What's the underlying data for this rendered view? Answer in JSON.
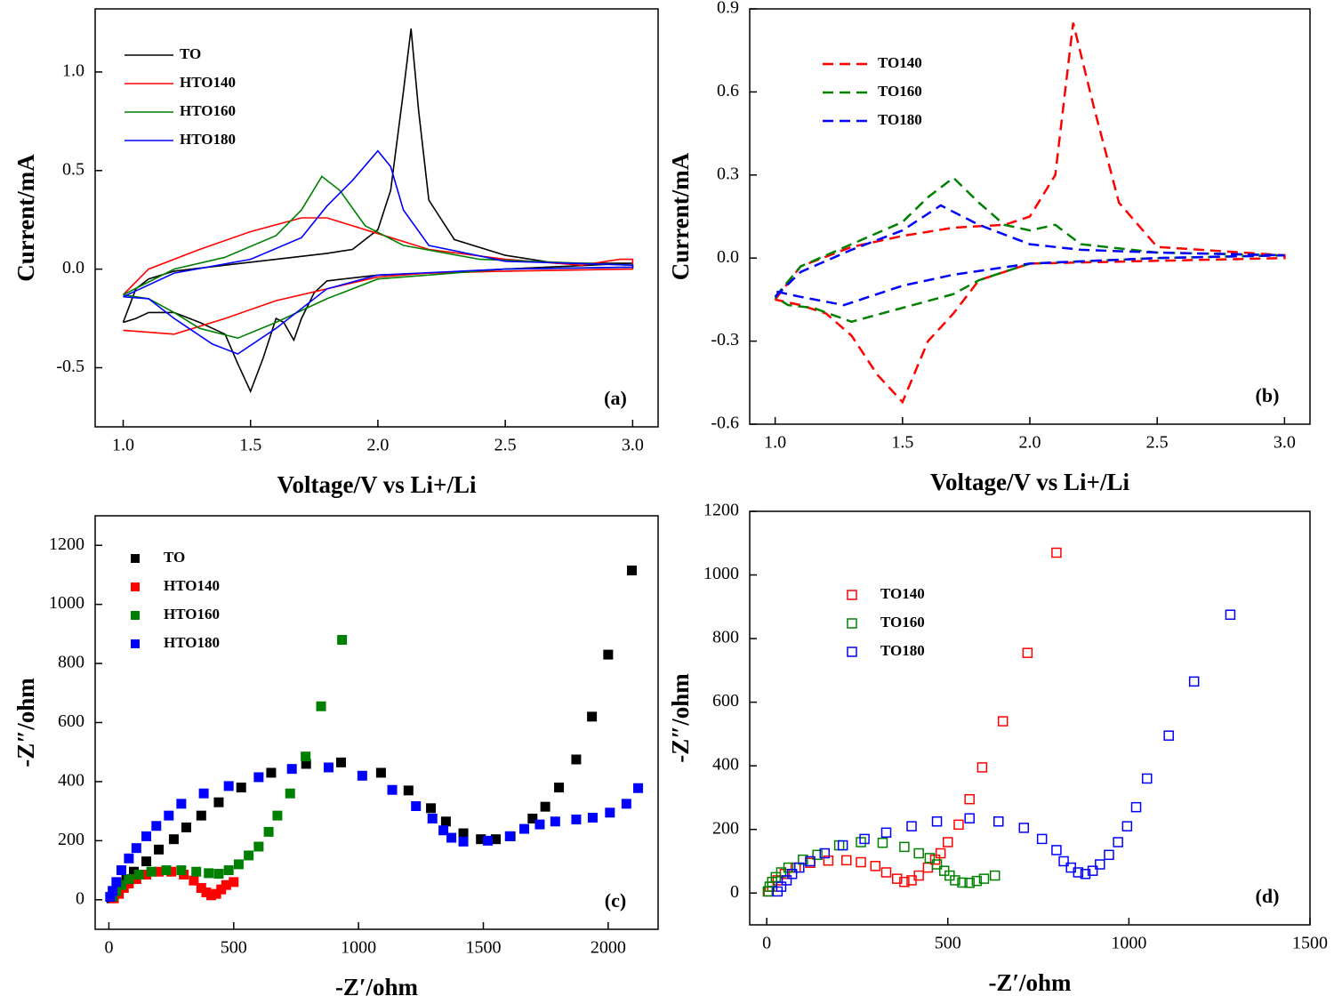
{
  "chart_data": [
    {
      "type": "line",
      "x_label": "Voltage/V vs Li+/Li",
      "y_label": "Current/mA",
      "annotation": "(a)",
      "legend": "upper left",
      "dashed": false,
      "xlim": [
        0.89,
        3.1
      ],
      "ylim": [
        -0.8,
        1.32
      ],
      "xticks": [
        {
          "value": 1,
          "label": "1.0"
        },
        1.5,
        {
          "value": 2,
          "label": "2.0"
        },
        2.5,
        {
          "value": 3,
          "label": "3.0"
        }
      ],
      "yticks": [
        -0.5,
        {
          "value": 0,
          "label": "0.0"
        },
        0.5,
        {
          "value": 1,
          "label": "1.0"
        }
      ],
      "series": [
        {
          "name": "TO",
          "color": "#000000",
          "x": [
            1.0,
            1.05,
            1.1,
            1.2,
            1.4,
            1.6,
            1.8,
            1.9,
            2.0,
            2.05,
            2.1,
            2.13,
            2.16,
            2.2,
            2.3,
            2.5,
            2.7,
            3.0,
            3.0,
            2.5,
            2.2,
            2.0,
            1.8,
            1.75,
            1.7,
            1.67,
            1.63,
            1.6,
            1.55,
            1.5,
            1.45,
            1.4,
            1.3,
            1.2,
            1.1,
            1.05,
            1.0
          ],
          "values": [
            -0.27,
            -0.1,
            -0.05,
            -0.01,
            0.02,
            0.05,
            0.08,
            0.1,
            0.2,
            0.4,
            0.9,
            1.22,
            0.8,
            0.35,
            0.15,
            0.07,
            0.03,
            0.03,
            0.03,
            0.0,
            -0.02,
            -0.03,
            -0.06,
            -0.12,
            -0.25,
            -0.36,
            -0.27,
            -0.25,
            -0.45,
            -0.62,
            -0.48,
            -0.33,
            -0.27,
            -0.22,
            -0.22,
            -0.25,
            -0.27
          ]
        },
        {
          "name": "HTO140",
          "color": "#ff0000",
          "x": [
            1.0,
            1.1,
            1.3,
            1.5,
            1.7,
            1.8,
            2.0,
            2.2,
            2.5,
            2.8,
            2.95,
            3.0,
            3.0,
            2.5,
            2.2,
            2.0,
            1.8,
            1.6,
            1.4,
            1.2,
            1.1,
            1.0
          ],
          "values": [
            -0.13,
            0.0,
            0.1,
            0.19,
            0.26,
            0.26,
            0.18,
            0.1,
            0.05,
            0.02,
            0.05,
            0.05,
            0.0,
            -0.01,
            -0.02,
            -0.04,
            -0.1,
            -0.16,
            -0.25,
            -0.33,
            -0.32,
            -0.31
          ]
        },
        {
          "name": "HTO160",
          "color": "#008000",
          "x": [
            1.0,
            1.2,
            1.4,
            1.6,
            1.7,
            1.78,
            1.85,
            1.95,
            2.1,
            2.4,
            3.0,
            3.0,
            2.5,
            2.0,
            1.8,
            1.6,
            1.45,
            1.3,
            1.2,
            1.1,
            1.0
          ],
          "values": [
            -0.13,
            0.0,
            0.06,
            0.17,
            0.3,
            0.47,
            0.4,
            0.22,
            0.12,
            0.05,
            0.02,
            0.01,
            0.0,
            -0.05,
            -0.15,
            -0.27,
            -0.35,
            -0.3,
            -0.22,
            -0.15,
            -0.13
          ]
        },
        {
          "name": "HTO180",
          "color": "#0000ff",
          "x": [
            1.0,
            1.2,
            1.5,
            1.7,
            1.8,
            1.9,
            2.0,
            2.05,
            2.1,
            2.2,
            2.5,
            3.0,
            3.0,
            2.5,
            2.0,
            1.8,
            1.6,
            1.45,
            1.35,
            1.2,
            1.1,
            1.0
          ],
          "values": [
            -0.14,
            -0.02,
            0.05,
            0.16,
            0.32,
            0.45,
            0.6,
            0.52,
            0.3,
            0.12,
            0.04,
            0.02,
            0.01,
            0.0,
            -0.03,
            -0.1,
            -0.3,
            -0.43,
            -0.38,
            -0.25,
            -0.15,
            -0.14
          ]
        }
      ]
    },
    {
      "type": "line",
      "x_label": "Voltage/V vs Li+/Li",
      "y_label": "Current/mA",
      "annotation": "(b)",
      "legend": "upper left",
      "dashed": true,
      "xlim": [
        0.9,
        3.1
      ],
      "ylim": [
        -0.6,
        0.9
      ],
      "xticks": [
        {
          "value": 1,
          "label": "1.0"
        },
        1.5,
        {
          "value": 2,
          "label": "2.0"
        },
        2.5,
        {
          "value": 3,
          "label": "3.0"
        }
      ],
      "yticks": [
        -0.6,
        -0.3,
        {
          "value": 0,
          "label": "0.0"
        },
        0.3,
        0.6,
        0.9
      ],
      "series": [
        {
          "name": "TO140",
          "color": "#ff0000",
          "x": [
            1.0,
            1.1,
            1.3,
            1.5,
            1.7,
            1.9,
            2.0,
            2.1,
            2.17,
            2.25,
            2.35,
            2.5,
            3.0,
            3.0,
            2.5,
            2.0,
            1.8,
            1.7,
            1.6,
            1.5,
            1.4,
            1.3,
            1.2,
            1.1,
            1.0
          ],
          "values": [
            -0.15,
            -0.03,
            0.04,
            0.08,
            0.11,
            0.12,
            0.15,
            0.3,
            0.85,
            0.55,
            0.2,
            0.04,
            0.01,
            0.0,
            -0.01,
            -0.02,
            -0.08,
            -0.2,
            -0.3,
            -0.52,
            -0.42,
            -0.28,
            -0.2,
            -0.17,
            -0.15
          ]
        },
        {
          "name": "TO160",
          "color": "#008000",
          "x": [
            1.0,
            1.1,
            1.3,
            1.5,
            1.6,
            1.7,
            1.8,
            1.9,
            2.0,
            2.1,
            2.2,
            2.5,
            3.0,
            3.0,
            2.5,
            2.0,
            1.8,
            1.7,
            1.5,
            1.3,
            1.15,
            1.05,
            1.0
          ],
          "values": [
            -0.14,
            -0.03,
            0.05,
            0.13,
            0.22,
            0.29,
            0.2,
            0.12,
            0.1,
            0.12,
            0.05,
            0.02,
            0.01,
            0.01,
            0.0,
            -0.02,
            -0.08,
            -0.13,
            -0.18,
            -0.23,
            -0.18,
            -0.17,
            -0.14
          ]
        },
        {
          "name": "TO180",
          "color": "#0000ff",
          "x": [
            1.0,
            1.1,
            1.3,
            1.5,
            1.65,
            1.8,
            2.0,
            2.2,
            2.5,
            3.0,
            3.0,
            2.5,
            2.0,
            1.7,
            1.5,
            1.27,
            1.1,
            1.0
          ],
          "values": [
            -0.14,
            -0.05,
            0.03,
            0.1,
            0.19,
            0.12,
            0.05,
            0.03,
            0.02,
            0.01,
            0.01,
            0.0,
            -0.02,
            -0.06,
            -0.1,
            -0.17,
            -0.14,
            -0.12
          ]
        }
      ]
    },
    {
      "type": "scatter",
      "x_label": "-Z′/ohm",
      "y_label": "-Z″/ohm",
      "annotation": "(c)",
      "legend": "upper left",
      "filled": true,
      "xlim": [
        -55,
        2200
      ],
      "ylim": [
        -100,
        1300
      ],
      "xticks": [
        0,
        500,
        1000,
        1500,
        2000
      ],
      "yticks": [
        0,
        200,
        400,
        600,
        800,
        1000,
        1200
      ],
      "series": [
        {
          "name": "TO",
          "color": "#000000",
          "x": [
            10,
            20,
            40,
            70,
            100,
            150,
            200,
            260,
            310,
            370,
            440,
            530,
            650,
            790,
            930,
            1090,
            1200,
            1290,
            1350,
            1420,
            1490,
            1550,
            1609,
            1697,
            1748,
            1803,
            1872,
            1935,
            2000,
            2095
          ],
          "values": [
            5,
            20,
            40,
            70,
            95,
            130,
            170,
            205,
            245,
            285,
            330,
            380,
            430,
            460,
            465,
            430,
            370,
            310,
            265,
            225,
            205,
            205,
            215,
            275,
            315,
            380,
            475,
            620,
            830,
            1115
          ]
        },
        {
          "name": "HTO140",
          "color": "#ff0000",
          "x": [
            20,
            40,
            60,
            80,
            110,
            150,
            200,
            250,
            300,
            340,
            370,
            390,
            410,
            430,
            450,
            470,
            500
          ],
          "values": [
            5,
            20,
            40,
            55,
            70,
            85,
            95,
            95,
            85,
            65,
            40,
            25,
            15,
            20,
            35,
            50,
            60
          ]
        },
        {
          "name": "HTO160",
          "color": "#008000",
          "x": [
            15,
            30,
            50,
            80,
            120,
            170,
            230,
            290,
            350,
            400,
            440,
            480,
            520,
            560,
            600,
            640,
            675,
            726,
            788,
            850,
            934
          ],
          "values": [
            10,
            30,
            50,
            70,
            85,
            95,
            100,
            100,
            95,
            90,
            88,
            100,
            120,
            150,
            180,
            230,
            285,
            360,
            485,
            655,
            880
          ]
        },
        {
          "name": "HTO180",
          "color": "#0000ff",
          "x": [
            5,
            15,
            30,
            50,
            80,
            110,
            150,
            190,
            240,
            290,
            380,
            480,
            600,
            733,
            880,
            1015,
            1135,
            1230,
            1296,
            1340,
            1372,
            1420,
            1518,
            1606,
            1664,
            1726,
            1788,
            1872,
            1938,
            2007,
            2073,
            2120
          ],
          "values": [
            10,
            30,
            60,
            100,
            140,
            175,
            215,
            250,
            285,
            325,
            360,
            385,
            415,
            443,
            448,
            420,
            372,
            317,
            275,
            235,
            210,
            197,
            200,
            215,
            240,
            255,
            265,
            272,
            278,
            295,
            325,
            378
          ]
        }
      ]
    },
    {
      "type": "scatter",
      "x_label": "-Z′/ohm",
      "y_label": "-Z″/ohm",
      "annotation": "(d)",
      "legend": "upper left",
      "filled": false,
      "xlim": [
        -47,
        1500
      ],
      "ylim": [
        -100,
        1200
      ],
      "xticks": [
        0,
        500,
        1000,
        1500
      ],
      "yticks": [
        0,
        200,
        400,
        600,
        800,
        1000,
        1200
      ],
      "series": [
        {
          "name": "TO140",
          "color": "#ff0000",
          "x": [
            5,
            15,
            30,
            50,
            80,
            120,
            170,
            220,
            260,
            300,
            330,
            360,
            380,
            400,
            420,
            445,
            465,
            480,
            500,
            530,
            560,
            595,
            652,
            720,
            800
          ],
          "values": [
            5,
            20,
            40,
            60,
            80,
            95,
            102,
            103,
            97,
            85,
            65,
            45,
            35,
            40,
            55,
            80,
            105,
            125,
            160,
            215,
            295,
            395,
            540,
            755,
            1070
          ]
        },
        {
          "name": "TO160",
          "color": "#008000",
          "x": [
            3,
            8,
            15,
            25,
            40,
            60,
            100,
            140,
            200,
            260,
            320,
            380,
            420,
            450,
            470,
            490,
            505,
            520,
            540,
            560,
            580,
            600,
            630
          ],
          "values": [
            5,
            20,
            35,
            50,
            65,
            80,
            105,
            120,
            150,
            160,
            158,
            145,
            125,
            110,
            90,
            70,
            55,
            40,
            33,
            32,
            38,
            45,
            55
          ]
        },
        {
          "name": "TO180",
          "color": "#0000ff",
          "x": [
            30,
            40,
            55,
            70,
            90,
            120,
            160,
            210,
            270,
            330,
            400,
            470,
            560,
            640,
            710,
            760,
            800,
            820,
            840,
            860,
            880,
            900,
            920,
            945,
            970,
            995,
            1020,
            1050,
            1110,
            1180,
            1280
          ],
          "values": [
            5,
            20,
            40,
            60,
            80,
            100,
            125,
            150,
            170,
            190,
            210,
            225,
            235,
            225,
            205,
            170,
            135,
            100,
            80,
            65,
            60,
            70,
            90,
            120,
            160,
            210,
            270,
            360,
            495,
            665,
            875
          ]
        }
      ]
    }
  ]
}
